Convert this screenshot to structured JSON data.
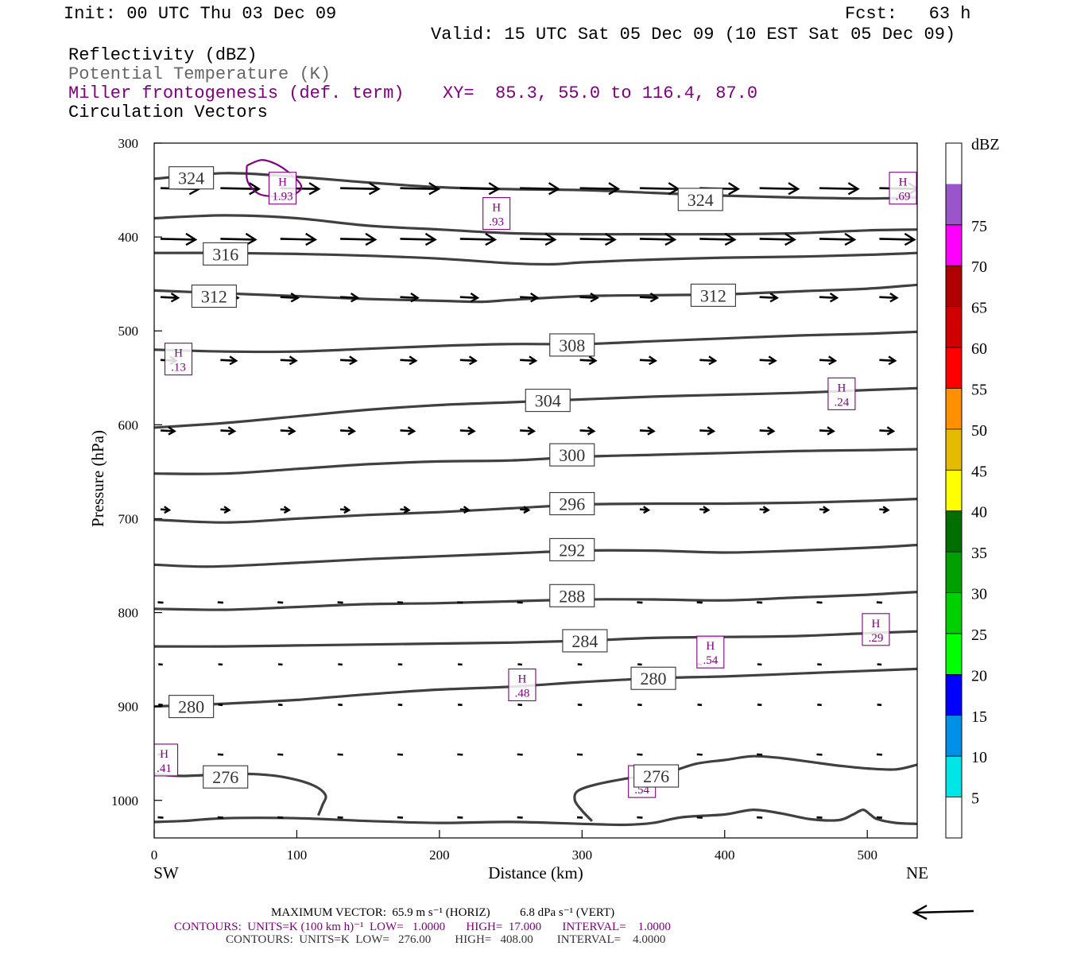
{
  "header": {
    "init": "Init: 00 UTC Thu 03 Dec 09",
    "fcst": "Fcst:   63 h",
    "valid": "Valid: 15 UTC Sat 05 Dec 09 (10 EST Sat 05 Dec 09)",
    "fields": [
      "Reflectivity (dBZ)",
      "Potential Temperature (K)",
      "Miller frontogenesis (def. term)",
      "Circulation Vectors"
    ],
    "xy": "XY=  85.3, 55.0 to 116.4, 87.0"
  },
  "colors": {
    "contour": "#404040",
    "purple": "#800080",
    "black": "#000000",
    "gray_text": "#666666"
  },
  "chart_data": {
    "type": "cross-section",
    "xlabel": "Distance (km)",
    "ylabel": "Pressure (hPa)",
    "xlim": [
      0,
      535
    ],
    "ylim": [
      1040,
      300
    ],
    "x_ticks": [
      "0",
      "100",
      "200",
      "300",
      "400",
      "500"
    ],
    "y_ticks": [
      "300",
      "400",
      "500",
      "600",
      "700",
      "800",
      "900",
      "1000"
    ],
    "x_end_labels": {
      "left": "SW",
      "right": "NE"
    },
    "theta_contours": [
      {
        "level": "324",
        "points": [
          [
            0,
            338
          ],
          [
            50,
            332
          ],
          [
            100,
            336
          ],
          [
            150,
            342
          ],
          [
            200,
            347
          ],
          [
            250,
            349
          ],
          [
            300,
            350
          ],
          [
            350,
            353
          ],
          [
            400,
            356
          ],
          [
            450,
            358
          ],
          [
            500,
            359
          ],
          [
            535,
            358
          ]
        ],
        "labels": [
          {
            "x": 26,
            "p": 337
          },
          {
            "x": 383,
            "p": 360
          }
        ]
      },
      {
        "level": "316",
        "points": [
          [
            0,
            380
          ],
          [
            50,
            377
          ],
          [
            100,
            380
          ],
          [
            150,
            388
          ],
          [
            200,
            392
          ],
          [
            250,
            396
          ],
          [
            300,
            397
          ],
          [
            350,
            397
          ],
          [
            400,
            397
          ],
          [
            450,
            396
          ],
          [
            500,
            393
          ],
          [
            535,
            392
          ]
        ],
        "labels": []
      },
      {
        "level": "316",
        "points": [
          [
            0,
            417
          ],
          [
            50,
            417
          ],
          [
            100,
            418
          ],
          [
            150,
            420
          ],
          [
            200,
            423
          ],
          [
            250,
            428
          ],
          [
            280,
            429
          ],
          [
            300,
            427
          ],
          [
            350,
            424
          ],
          [
            400,
            422
          ],
          [
            450,
            421
          ],
          [
            500,
            419
          ],
          [
            535,
            417
          ]
        ],
        "labels": [
          {
            "x": 50,
            "p": 418
          }
        ]
      },
      {
        "level": "312",
        "points": [
          [
            0,
            457
          ],
          [
            50,
            460
          ],
          [
            100,
            463
          ],
          [
            150,
            466
          ],
          [
            200,
            468
          ],
          [
            230,
            469
          ],
          [
            250,
            467
          ],
          [
            300,
            463
          ],
          [
            350,
            462
          ],
          [
            400,
            461
          ],
          [
            450,
            458
          ],
          [
            500,
            455
          ],
          [
            535,
            451
          ]
        ],
        "labels": [
          {
            "x": 42,
            "p": 463
          },
          {
            "x": 392,
            "p": 462
          }
        ]
      },
      {
        "level": "308",
        "points": [
          [
            0,
            520
          ],
          [
            50,
            522
          ],
          [
            100,
            522
          ],
          [
            150,
            519
          ],
          [
            200,
            516
          ],
          [
            250,
            514
          ],
          [
            300,
            514
          ],
          [
            350,
            511
          ],
          [
            400,
            508
          ],
          [
            450,
            505
          ],
          [
            500,
            503
          ],
          [
            535,
            501
          ]
        ],
        "labels": [
          {
            "x": 293,
            "p": 515
          }
        ]
      },
      {
        "level": "304",
        "points": [
          [
            0,
            603
          ],
          [
            50,
            598
          ],
          [
            100,
            591
          ],
          [
            150,
            584
          ],
          [
            200,
            579
          ],
          [
            250,
            576
          ],
          [
            300,
            573
          ],
          [
            350,
            570
          ],
          [
            400,
            568
          ],
          [
            450,
            566
          ],
          [
            500,
            563
          ],
          [
            535,
            561
          ]
        ],
        "labels": [
          {
            "x": 276,
            "p": 574
          }
        ]
      },
      {
        "level": "300",
        "points": [
          [
            0,
            652
          ],
          [
            50,
            652
          ],
          [
            100,
            647
          ],
          [
            150,
            642
          ],
          [
            200,
            639
          ],
          [
            250,
            638
          ],
          [
            300,
            634
          ],
          [
            350,
            632
          ],
          [
            400,
            630
          ],
          [
            450,
            628
          ],
          [
            500,
            627
          ],
          [
            535,
            626
          ]
        ],
        "labels": [
          {
            "x": 293,
            "p": 632
          }
        ]
      },
      {
        "level": "296",
        "points": [
          [
            0,
            701
          ],
          [
            50,
            704
          ],
          [
            100,
            700
          ],
          [
            150,
            696
          ],
          [
            200,
            693
          ],
          [
            250,
            689
          ],
          [
            300,
            685
          ],
          [
            350,
            684
          ],
          [
            400,
            684
          ],
          [
            450,
            683
          ],
          [
            500,
            681
          ],
          [
            535,
            679
          ]
        ],
        "labels": [
          {
            "x": 293,
            "p": 684
          }
        ]
      },
      {
        "level": "292",
        "points": [
          [
            0,
            749
          ],
          [
            40,
            751
          ],
          [
            100,
            747
          ],
          [
            150,
            743
          ],
          [
            200,
            740
          ],
          [
            250,
            737
          ],
          [
            300,
            734
          ],
          [
            350,
            734
          ],
          [
            400,
            736
          ],
          [
            450,
            734
          ],
          [
            500,
            731
          ],
          [
            535,
            728
          ]
        ],
        "labels": [
          {
            "x": 293,
            "p": 733
          }
        ]
      },
      {
        "level": "288",
        "points": [
          [
            0,
            796
          ],
          [
            50,
            797
          ],
          [
            100,
            794
          ],
          [
            150,
            791
          ],
          [
            200,
            790
          ],
          [
            250,
            788
          ],
          [
            300,
            786
          ],
          [
            350,
            786
          ],
          [
            400,
            787
          ],
          [
            450,
            784
          ],
          [
            500,
            781
          ],
          [
            535,
            778
          ]
        ],
        "labels": [
          {
            "x": 293,
            "p": 782
          }
        ]
      },
      {
        "level": "284",
        "points": [
          [
            0,
            836
          ],
          [
            50,
            836
          ],
          [
            100,
            835
          ],
          [
            150,
            834
          ],
          [
            200,
            833
          ],
          [
            250,
            832
          ],
          [
            300,
            830
          ],
          [
            350,
            827
          ],
          [
            400,
            826
          ],
          [
            450,
            825
          ],
          [
            500,
            822
          ],
          [
            535,
            820
          ]
        ],
        "labels": [
          {
            "x": 302,
            "p": 830
          }
        ]
      },
      {
        "level": "280",
        "points": [
          [
            0,
            900
          ],
          [
            50,
            897
          ],
          [
            100,
            893
          ],
          [
            150,
            887
          ],
          [
            200,
            882
          ],
          [
            250,
            879
          ],
          [
            300,
            874
          ],
          [
            350,
            870
          ],
          [
            400,
            868
          ],
          [
            450,
            865
          ],
          [
            500,
            862
          ],
          [
            535,
            860
          ]
        ],
        "labels": [
          {
            "x": 26,
            "p": 900
          },
          {
            "x": 350,
            "p": 870
          }
        ]
      },
      {
        "level": "276",
        "points": [
          [
            0,
            972
          ],
          [
            20,
            974
          ],
          [
            50,
            972
          ],
          [
            70,
            972
          ],
          [
            90,
            975
          ],
          [
            110,
            983
          ],
          [
            120,
            994
          ],
          [
            118,
            1005
          ],
          [
            115,
            1016
          ]
        ],
        "labels": [
          {
            "x": 50,
            "p": 975
          }
        ]
      },
      {
        "level": "276",
        "points": [
          [
            307,
            1022
          ],
          [
            300,
            1011
          ],
          [
            295,
            1000
          ],
          [
            297,
            990
          ],
          [
            310,
            983
          ],
          [
            330,
            977
          ],
          [
            360,
            970
          ],
          [
            380,
            961
          ],
          [
            400,
            957
          ],
          [
            420,
            953
          ],
          [
            440,
            955
          ],
          [
            460,
            959
          ],
          [
            480,
            963
          ],
          [
            500,
            966
          ],
          [
            520,
            967
          ],
          [
            535,
            962
          ]
        ],
        "labels": [
          {
            "x": 352,
            "p": 974
          }
        ]
      },
      {
        "level": "",
        "points": [
          [
            0,
            1023
          ],
          [
            20,
            1022
          ],
          [
            50,
            1019
          ],
          [
            100,
            1019
          ],
          [
            150,
            1022
          ],
          [
            200,
            1024
          ],
          [
            250,
            1023
          ],
          [
            300,
            1025
          ],
          [
            330,
            1026
          ],
          [
            350,
            1024
          ],
          [
            370,
            1018
          ],
          [
            400,
            1015
          ],
          [
            420,
            1010
          ],
          [
            440,
            1014
          ],
          [
            460,
            1020
          ],
          [
            480,
            1021
          ],
          [
            490,
            1015
          ],
          [
            497,
            1010
          ],
          [
            502,
            1015
          ],
          [
            507,
            1020
          ],
          [
            520,
            1024
          ],
          [
            535,
            1025
          ]
        ],
        "labels": []
      }
    ],
    "frontogenesis_maxima": [
      {
        "label": "H",
        "value": "1.93",
        "x": 90,
        "p": 348
      },
      {
        "label": "H",
        "value": ".93",
        "x": 240,
        "p": 375
      },
      {
        "label": "H",
        "value": ".69",
        "x": 525,
        "p": 348
      },
      {
        "label": "H",
        "value": ".13",
        "x": 17,
        "p": 530
      },
      {
        "label": "H",
        "value": ".24",
        "x": 482,
        "p": 567
      },
      {
        "label": "H",
        "value": ".29",
        "x": 506,
        "p": 818
      },
      {
        "label": "H",
        "value": ".54",
        "x": 390,
        "p": 842
      },
      {
        "label": "H",
        "value": ".48",
        "x": 258,
        "p": 877
      },
      {
        "label": "H",
        "value": ".41",
        "x": 7,
        "p": 957
      },
      {
        "label": "H",
        "value": ".54",
        "x": 342,
        "p": 980
      }
    ],
    "frontogenesis_contour": [
      [
        65,
        324
      ],
      [
        75,
        318
      ],
      [
        85,
        322
      ],
      [
        95,
        332
      ],
      [
        103,
        345
      ],
      [
        100,
        353
      ],
      [
        90,
        357
      ],
      [
        75,
        355
      ],
      [
        68,
        347
      ],
      [
        65,
        338
      ],
      [
        65,
        324
      ]
    ],
    "reflectivity_colorbar": {
      "unit": "dBZ",
      "labels": [
        "5",
        "10",
        "15",
        "20",
        "25",
        "30",
        "35",
        "40",
        "45",
        "50",
        "55",
        "60",
        "65",
        "70",
        "75"
      ],
      "colors": [
        "#ffffff",
        "#00e5e5",
        "#0090e8",
        "#0000ff",
        "#00ff00",
        "#00d000",
        "#00a000",
        "#006f00",
        "#ffff00",
        "#e5bb00",
        "#ff9000",
        "#ff0000",
        "#d00000",
        "#b00000",
        "#ff00ff",
        "#9955c9",
        "#ffffff"
      ]
    },
    "vector_rows": [
      {
        "p": 348,
        "u": 22,
        "dot": false
      },
      {
        "p": 402,
        "u": 20,
        "dot": false
      },
      {
        "p": 464,
        "u": 10,
        "dot": false
      },
      {
        "p": 531,
        "u": 9,
        "dot": false
      },
      {
        "p": 606,
        "u": 8,
        "dot": false
      },
      {
        "p": 690,
        "u": 5,
        "dot": false
      },
      {
        "p": 789,
        "u": 2,
        "dot": true
      },
      {
        "p": 855,
        "u": 1,
        "dot": true
      },
      {
        "p": 898,
        "u": 1,
        "dot": true
      },
      {
        "p": 951,
        "u": 2,
        "dot": true
      },
      {
        "p": 1018,
        "u": 2,
        "dot": true
      }
    ],
    "vector_columns_km": [
      0,
      42,
      84,
      126,
      168,
      210,
      252,
      294,
      336,
      378,
      420,
      462,
      504
    ]
  },
  "footer": {
    "max_vector": "MAXIMUM VECTOR:  65.9 m s⁻¹ (HORIZ)          6.8 dPa s⁻¹ (VERT)",
    "contours_purple": "CONTOURS:  UNITS=K (100 km h)⁻¹  LOW=   1.0000       HIGH=  17.000       INTERVAL=    1.0000",
    "contours_black": "CONTOURS:  UNITS=K  LOW=   276.00        HIGH=   408.00        INTERVAL=    4.0000"
  }
}
